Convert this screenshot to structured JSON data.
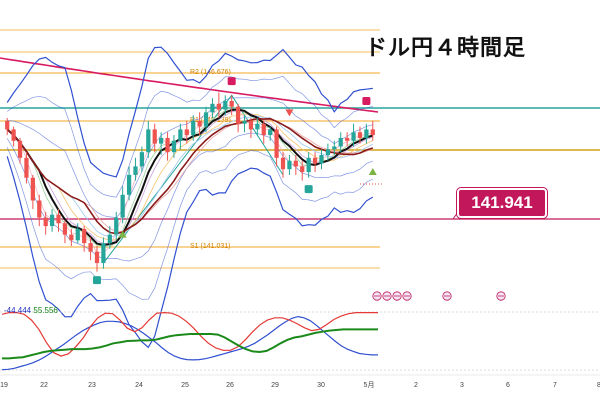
{
  "title": "ドル円４時間足",
  "current_price_label": "141.941",
  "colors": {
    "bull": "#26a69a",
    "bear": "#ef5350",
    "sma_long": "#d81b60",
    "price_line": "#c2185b",
    "teal_line": "#26a69a",
    "gold_line": "#d4a017",
    "pivot": "#f5a623",
    "bb": "#3050d0",
    "stoch_k": "#e53935",
    "stoch_d": "#1e3fd1",
    "rsi": "#1b8a1b"
  },
  "oscillator_values": [
    "-44.444",
    "55.556"
  ],
  "chart_data": [
    {
      "type": "candlestick",
      "title": "ドル円４時間足",
      "x_tick_labels": [
        "19",
        "22",
        "23",
        "24",
        "25",
        "26",
        "29",
        "30",
        "5月",
        "2",
        "3",
        "6",
        "7",
        "8"
      ],
      "pivot_labels": [
        "R2 (146.676)",
        "R1 (145.139)",
        "S1 (141.031)"
      ],
      "current_price": 141.941,
      "candles": [
        [
          144.9,
          144.6,
          145.0,
          144.4
        ],
        [
          144.6,
          144.2,
          144.7,
          144.0
        ],
        [
          144.2,
          143.6,
          144.3,
          143.4
        ],
        [
          143.6,
          142.9,
          143.8,
          142.7
        ],
        [
          142.9,
          142.1,
          143.0,
          141.8
        ],
        [
          142.1,
          141.5,
          142.3,
          141.2
        ],
        [
          141.5,
          141.2,
          141.7,
          140.9
        ],
        [
          141.2,
          141.6,
          141.8,
          141.0
        ],
        [
          141.6,
          141.3,
          141.8,
          141.0
        ],
        [
          141.3,
          140.9,
          141.4,
          140.6
        ],
        [
          140.9,
          140.7,
          141.1,
          140.5
        ],
        [
          140.7,
          141.1,
          141.3,
          140.6
        ],
        [
          141.1,
          140.6,
          141.2,
          140.3
        ],
        [
          140.6,
          140.3,
          140.8,
          140.0
        ],
        [
          140.3,
          139.9,
          140.5,
          139.6
        ],
        [
          139.9,
          140.6,
          140.8,
          139.7
        ],
        [
          140.6,
          140.9,
          141.2,
          140.4
        ],
        [
          140.9,
          141.5,
          141.7,
          140.7
        ],
        [
          141.5,
          142.3,
          142.6,
          141.3
        ],
        [
          142.3,
          143.0,
          143.3,
          142.1
        ],
        [
          143.0,
          143.3,
          143.6,
          142.8
        ],
        [
          143.3,
          143.8,
          144.0,
          143.1
        ],
        [
          143.8,
          144.6,
          144.9,
          143.6
        ],
        [
          144.6,
          144.1,
          144.8,
          143.8
        ],
        [
          144.1,
          144.3,
          144.5,
          143.7
        ],
        [
          144.3,
          143.8,
          144.5,
          143.5
        ],
        [
          143.8,
          144.2,
          144.4,
          143.6
        ],
        [
          144.2,
          144.6,
          144.8,
          143.9
        ],
        [
          144.6,
          144.4,
          144.9,
          144.1
        ],
        [
          144.4,
          144.9,
          145.1,
          144.2
        ],
        [
          144.9,
          144.7,
          145.2,
          144.4
        ],
        [
          144.7,
          145.2,
          145.4,
          144.5
        ],
        [
          145.2,
          145.5,
          145.7,
          145.0
        ],
        [
          145.5,
          145.3,
          145.9,
          145.0
        ],
        [
          145.3,
          145.6,
          145.8,
          145.1
        ],
        [
          145.6,
          145.4,
          145.8,
          145.1
        ],
        [
          145.4,
          144.8,
          145.5,
          144.5
        ],
        [
          144.8,
          144.9,
          145.1,
          144.5
        ],
        [
          144.9,
          144.6,
          145.0,
          144.3
        ],
        [
          144.6,
          144.8,
          145.0,
          144.4
        ],
        [
          144.8,
          144.4,
          144.9,
          144.1
        ],
        [
          144.4,
          144.6,
          144.7,
          144.2
        ],
        [
          144.6,
          143.6,
          144.7,
          143.3
        ],
        [
          143.6,
          143.2,
          143.8,
          142.9
        ],
        [
          143.2,
          143.5,
          143.7,
          143.0
        ],
        [
          143.5,
          143.3,
          143.7,
          143.0
        ],
        [
          143.3,
          143.1,
          143.5,
          142.8
        ],
        [
          143.1,
          143.6,
          143.8,
          142.9
        ],
        [
          143.6,
          143.4,
          143.8,
          143.1
        ],
        [
          143.4,
          143.7,
          143.9,
          143.2
        ],
        [
          143.7,
          143.9,
          144.1,
          143.5
        ],
        [
          143.9,
          144.0,
          144.2,
          143.7
        ],
        [
          144.0,
          144.3,
          144.5,
          143.8
        ],
        [
          144.3,
          144.2,
          144.5,
          144.0
        ],
        [
          144.2,
          144.5,
          144.8,
          144.0
        ],
        [
          144.5,
          144.3,
          144.7,
          144.1
        ],
        [
          144.3,
          144.6,
          144.8,
          144.1
        ],
        [
          144.6,
          144.4,
          144.9,
          144.2
        ]
      ]
    },
    {
      "type": "line",
      "series": [
        {
          "values": [
            0.5,
            1.2,
            3.0,
            6.0,
            9.0,
            12.5,
            17.0,
            23.0,
            30.0,
            37.0,
            44.0,
            52.0,
            60.0,
            67.0,
            73.0,
            78.0,
            82.0,
            84.0,
            84.0,
            83.0,
            80.0,
            76.0,
            70.0,
            63.0,
            55.0,
            47.0,
            38.0,
            30.0,
            24.0,
            20.0,
            18.0,
            17.5,
            18.0,
            19.5,
            22.0,
            25.0,
            28.0,
            31.0,
            34.0,
            37.0,
            41.0,
            46.0,
            53.0,
            60.0,
            68.0,
            76.0,
            83.0,
            89.0,
            92.0,
            90.0,
            85.0,
            77.0,
            68.0,
            59.0,
            50.0,
            42.0,
            36.0,
            32.0,
            28.5,
            27.0,
            26.0,
            26.0
          ]
        },
        {
          "values": [
            96.0,
            99.0,
            99.0,
            96.0,
            86.0,
            70.0,
            48.0,
            30.0,
            24.0,
            28.0,
            40.0,
            55.0,
            75.0,
            90.0,
            98.0,
            97.0,
            86.0,
            72.0,
            66.0,
            73.0,
            87.0,
            98.0,
            99.0,
            98.0,
            93.0,
            84.0,
            72.0,
            58.0,
            46.0,
            38.0,
            34.0,
            34.0,
            40.0,
            52.0,
            66.0,
            78.0,
            86.0,
            90.0,
            90.0,
            86.0,
            80.0,
            73.0,
            68.0,
            70.0,
            78.0,
            87.0,
            93.0,
            97.0,
            99.0,
            99.0,
            99.0,
            99.0
          ]
        },
        {
          "values": [
            20.0,
            20.0,
            21.0,
            22.0,
            25.0,
            28.0,
            31.0,
            33.0,
            34.0,
            35.0,
            36.0,
            36.0,
            36.0,
            37.0,
            39.0,
            42.0,
            46.0,
            48.0,
            50.0,
            50.5,
            51.0,
            51.0,
            52.0,
            55.0,
            58.0,
            60.0,
            61.0,
            62.0,
            62.0,
            62.0,
            62.0,
            61.0,
            56.0,
            49.0,
            42.0,
            36.0,
            32.0,
            31.0,
            33.0,
            39.0,
            46.0,
            52.0,
            56.0,
            58.0,
            61.0,
            64.0,
            66.0,
            68.0,
            69.0,
            70.0,
            70.0,
            70.0,
            70.0,
            70.0,
            70.0
          ]
        }
      ]
    }
  ]
}
